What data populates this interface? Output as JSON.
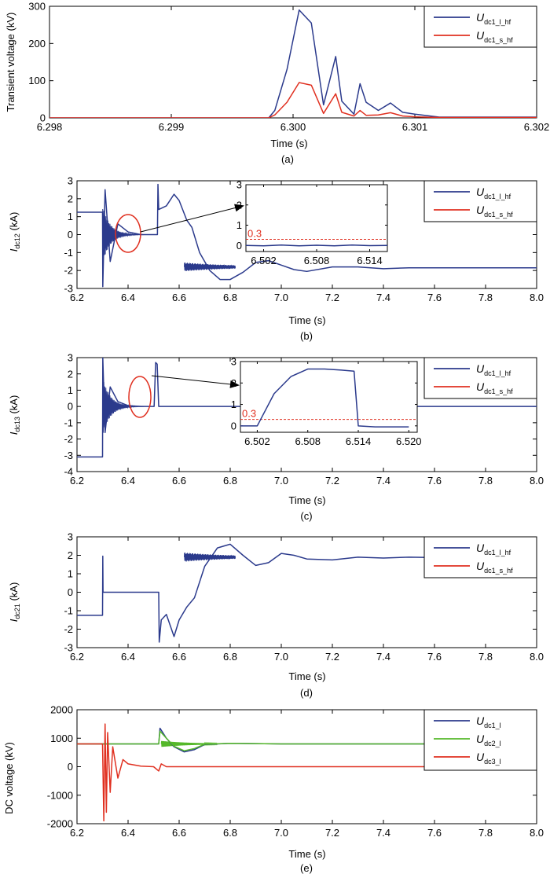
{
  "figure": {
    "width": 700,
    "height": 1112
  },
  "colors": {
    "blue": "#2b3a8c",
    "red": "#e03020",
    "green": "#55b82a",
    "inset_red": "#e03020"
  },
  "panels": [
    {
      "id": "a",
      "caption": "(a)",
      "ylabel": "Transient voltage (kV)",
      "xlabel": "Time (s)",
      "xlim": [
        6.298,
        6.302
      ],
      "ylim": [
        0,
        300
      ],
      "xticks": [
        6.298,
        6.299,
        6.3,
        6.301,
        6.302
      ],
      "xtick_labels": [
        "6.298",
        "6.299",
        "6.300",
        "6.301",
        "6.302"
      ],
      "yticks": [
        0,
        100,
        200,
        300
      ],
      "ytick_labels": [
        "0",
        "100",
        "200",
        "300"
      ],
      "legend": [
        {
          "main": "U",
          "sub": "dc1_l_hf",
          "color": "blue"
        },
        {
          "main": "U",
          "sub": "dc1_s_hf",
          "color": "red"
        }
      ]
    },
    {
      "id": "b",
      "caption": "(b)",
      "ylabel_main": "I",
      "ylabel_sub": "dc12",
      "ylabel_unit": " (kA)",
      "xlabel": "Time (s)",
      "xlim": [
        6.2,
        8.0
      ],
      "ylim": [
        -3,
        3
      ],
      "xticks": [
        6.2,
        6.4,
        6.6,
        6.8,
        7.0,
        7.2,
        7.4,
        7.6,
        7.8,
        8.0
      ],
      "xtick_labels": [
        "6.2",
        "6.4",
        "6.6",
        "6.8",
        "7.0",
        "7.2",
        "7.4",
        "7.6",
        "7.8",
        "8.0"
      ],
      "yticks": [
        -3,
        -2,
        -1,
        0,
        1,
        2,
        3
      ],
      "ytick_labels": [
        "-3",
        "-2",
        "-1",
        "0",
        "1",
        "2",
        "3"
      ],
      "legend": [
        {
          "main": "U",
          "sub": "dc1_l_hf",
          "color": "blue"
        },
        {
          "main": "U",
          "sub": "dc1_s_hf",
          "color": "red"
        }
      ],
      "inset": {
        "xlim": [
          6.5,
          6.516
        ],
        "ylim": [
          -0.3,
          3
        ],
        "xticks": [
          6.502,
          6.508,
          6.514
        ],
        "xtick_labels": [
          "6.502",
          "6.508",
          "6.514"
        ],
        "yticks": [
          0,
          1,
          2,
          3
        ],
        "ytick_labels": [
          "0",
          "1",
          "2",
          "3"
        ],
        "threshold": 0.3,
        "threshold_label": "0.3"
      }
    },
    {
      "id": "c",
      "caption": "(c)",
      "ylabel_main": "I",
      "ylabel_sub": "dc13",
      "ylabel_unit": " (kA)",
      "xlabel": "Time (s)",
      "xlim": [
        6.2,
        8.0
      ],
      "ylim": [
        -4,
        3
      ],
      "xticks": [
        6.2,
        6.4,
        6.6,
        6.8,
        7.0,
        7.2,
        7.4,
        7.6,
        7.8,
        8.0
      ],
      "xtick_labels": [
        "6.2",
        "6.4",
        "6.6",
        "6.8",
        "7.0",
        "7.2",
        "7.4",
        "7.6",
        "7.8",
        "8.0"
      ],
      "yticks": [
        -4,
        -3,
        -2,
        -1,
        0,
        1,
        2,
        3
      ],
      "ytick_labels": [
        "-4",
        "-3",
        "-2",
        "-1",
        "0",
        "1",
        "2",
        "3"
      ],
      "legend": [
        {
          "main": "U",
          "sub": "dc1_l_hf",
          "color": "blue"
        },
        {
          "main": "U",
          "sub": "dc1_s_hf",
          "color": "red"
        }
      ],
      "inset": {
        "xlim": [
          6.5,
          6.521
        ],
        "ylim": [
          -0.3,
          3
        ],
        "xticks": [
          6.502,
          6.508,
          6.514,
          6.52
        ],
        "xtick_labels": [
          "6.502",
          "6.508",
          "6.514",
          "6.520"
        ],
        "yticks": [
          0,
          1,
          2,
          3
        ],
        "ytick_labels": [
          "0",
          "1",
          "2",
          "3"
        ],
        "threshold": 0.3,
        "threshold_label": "0.3"
      }
    },
    {
      "id": "d",
      "caption": "(d)",
      "ylabel_main": "I",
      "ylabel_sub": "dc21",
      "ylabel_unit": " (kA)",
      "xlabel": "Time (s)",
      "xlim": [
        6.2,
        8.0
      ],
      "ylim": [
        -3,
        3
      ],
      "xticks": [
        6.2,
        6.4,
        6.6,
        6.8,
        7.0,
        7.2,
        7.4,
        7.6,
        7.8,
        8.0
      ],
      "xtick_labels": [
        "6.2",
        "6.4",
        "6.6",
        "6.8",
        "7.0",
        "7.2",
        "7.4",
        "7.6",
        "7.8",
        "8.0"
      ],
      "yticks": [
        -3,
        -2,
        -1,
        0,
        1,
        2,
        3
      ],
      "ytick_labels": [
        "-3",
        "-2",
        "-1",
        "0",
        "1",
        "2",
        "3"
      ],
      "legend": [
        {
          "main": "U",
          "sub": "dc1_l_hf",
          "color": "blue"
        },
        {
          "main": "U",
          "sub": "dc1_s_hf",
          "color": "red"
        }
      ]
    },
    {
      "id": "e",
      "caption": "(e)",
      "ylabel": "DC voltage (kV)",
      "xlabel": "Time (s)",
      "xlim": [
        6.2,
        8.0
      ],
      "ylim": [
        -2000,
        2000
      ],
      "xticks": [
        6.2,
        6.4,
        6.6,
        6.8,
        7.0,
        7.2,
        7.4,
        7.6,
        7.8,
        8.0
      ],
      "xtick_labels": [
        "6.2",
        "6.4",
        "6.6",
        "6.8",
        "7.0",
        "7.2",
        "7.4",
        "7.6",
        "7.8",
        "8.0"
      ],
      "yticks": [
        -2000,
        -1000,
        0,
        1000,
        2000
      ],
      "ytick_labels": [
        "-2000",
        "-1000",
        "0",
        "1000",
        "2000"
      ],
      "legend": [
        {
          "main": "U",
          "sub": "dc1_l",
          "color": "blue"
        },
        {
          "main": "U",
          "sub": "dc2_l",
          "color": "green"
        },
        {
          "main": "U",
          "sub": "dc3_l",
          "color": "red"
        }
      ]
    }
  ],
  "chart_data": [
    {
      "panel": "a",
      "type": "line",
      "title": "",
      "xlabel": "Time (s)",
      "ylabel": "Transient voltage (kV)",
      "xlim": [
        6.298,
        6.302
      ],
      "ylim": [
        0,
        300
      ],
      "series": [
        {
          "name": "U_dc1_l_hf",
          "color": "blue",
          "x": [
            6.298,
            6.2995,
            6.2998,
            6.29985,
            6.29995,
            6.30005,
            6.30015,
            6.30025,
            6.30035,
            6.3004,
            6.3005,
            6.30055,
            6.3006,
            6.3007,
            6.3008,
            6.3009,
            6.301,
            6.3012,
            6.302
          ],
          "y": [
            0,
            0,
            0,
            20,
            130,
            290,
            255,
            35,
            165,
            45,
            10,
            92,
            42,
            20,
            40,
            15,
            10,
            2,
            2
          ]
        },
        {
          "name": "U_dc1_s_hf",
          "color": "red",
          "x": [
            6.298,
            6.2995,
            6.2998,
            6.29985,
            6.29995,
            6.30005,
            6.30015,
            6.30025,
            6.30035,
            6.3004,
            6.3005,
            6.30055,
            6.3006,
            6.3007,
            6.3008,
            6.3009,
            6.301,
            6.3012,
            6.302
          ],
          "y": [
            0,
            0,
            0,
            8,
            42,
            95,
            88,
            12,
            65,
            15,
            5,
            20,
            7,
            8,
            14,
            5,
            3,
            1,
            1
          ]
        }
      ]
    },
    {
      "panel": "b",
      "type": "line",
      "xlabel": "Time (s)",
      "ylabel": "I_dc12 (kA)",
      "xlim": [
        6.2,
        8.0
      ],
      "ylim": [
        -3,
        3
      ],
      "series": [
        {
          "name": "U_dc1_l_hf",
          "color": "blue",
          "x": [
            6.2,
            6.3,
            6.301,
            6.31,
            6.33,
            6.36,
            6.4,
            6.45,
            6.5,
            6.515,
            6.517,
            6.52,
            6.55,
            6.58,
            6.6,
            6.63,
            6.65,
            6.68,
            6.72,
            6.76,
            6.8,
            6.85,
            6.9,
            6.95,
            7.0,
            7.05,
            7.1,
            7.2,
            7.3,
            7.4,
            7.5,
            7.6,
            7.8,
            8.0
          ],
          "y": [
            1.25,
            1.25,
            -2.9,
            2.5,
            -1.5,
            0.6,
            0.15,
            0.0,
            0.0,
            0.0,
            2.8,
            1.4,
            1.6,
            2.25,
            1.9,
            0.8,
            0.4,
            -1.0,
            -2.0,
            -2.5,
            -2.5,
            -2.1,
            -1.55,
            -1.45,
            -1.7,
            -1.95,
            -2.05,
            -1.8,
            -1.8,
            -1.9,
            -1.85,
            -1.85,
            -1.85,
            -1.85
          ]
        },
        {
          "name": "U_dc1_s_hf",
          "color": "red",
          "x": [],
          "y": []
        }
      ],
      "inset": {
        "x": [
          6.5,
          6.502,
          6.504,
          6.506,
          6.508,
          6.51,
          6.512,
          6.514,
          6.516
        ],
        "y": [
          0.0,
          -0.02,
          0.02,
          -0.02,
          0.01,
          -0.02,
          0.02,
          -0.01,
          0.0
        ],
        "threshold": 0.3
      }
    },
    {
      "panel": "c",
      "type": "line",
      "xlabel": "Time (s)",
      "ylabel": "I_dc13 (kA)",
      "xlim": [
        6.2,
        8.0
      ],
      "ylim": [
        -4,
        3
      ],
      "series": [
        {
          "name": "U_dc1_l_hf",
          "color": "blue",
          "x": [
            6.2,
            6.3,
            6.301,
            6.31,
            6.33,
            6.36,
            6.4,
            6.45,
            6.5,
            6.502,
            6.508,
            6.514,
            6.52,
            6.55,
            6.7,
            7.0,
            7.5,
            8.0
          ],
          "y": [
            -3.1,
            -3.1,
            3.0,
            -1.6,
            1.2,
            0.3,
            0.05,
            0.0,
            0.0,
            0.0,
            2.7,
            2.6,
            0.0,
            0.0,
            0.0,
            0.0,
            0.0,
            0.0
          ]
        },
        {
          "name": "U_dc1_s_hf",
          "color": "red",
          "x": [],
          "y": []
        }
      ],
      "inset": {
        "x": [
          6.5,
          6.5015,
          6.502,
          6.504,
          6.506,
          6.508,
          6.51,
          6.512,
          6.5135,
          6.514,
          6.516,
          6.518,
          6.52
        ],
        "y": [
          0.0,
          0.0,
          0.0,
          1.5,
          2.3,
          2.65,
          2.65,
          2.6,
          2.55,
          0.0,
          -0.05,
          -0.05,
          -0.05
        ],
        "threshold": 0.3
      }
    },
    {
      "panel": "d",
      "type": "line",
      "xlabel": "Time (s)",
      "ylabel": "I_dc21 (kA)",
      "xlim": [
        6.2,
        8.0
      ],
      "ylim": [
        -3,
        3
      ],
      "series": [
        {
          "name": "U_dc1_l_hf",
          "color": "blue",
          "x": [
            6.2,
            6.3,
            6.301,
            6.302,
            6.31,
            6.52,
            6.522,
            6.53,
            6.55,
            6.58,
            6.6,
            6.63,
            6.66,
            6.7,
            6.75,
            6.8,
            6.85,
            6.9,
            6.95,
            7.0,
            7.05,
            7.1,
            7.2,
            7.3,
            7.4,
            7.5,
            7.6,
            7.8,
            8.0
          ],
          "y": [
            -1.25,
            -1.25,
            1.95,
            0.0,
            0.0,
            0.0,
            -2.7,
            -1.5,
            -1.2,
            -2.4,
            -1.5,
            -0.8,
            -0.3,
            1.4,
            2.4,
            2.6,
            2.0,
            1.45,
            1.6,
            2.1,
            2.0,
            1.8,
            1.75,
            1.9,
            1.85,
            1.9,
            1.88,
            1.88,
            1.88
          ]
        },
        {
          "name": "U_dc1_s_hf",
          "color": "red",
          "x": [],
          "y": []
        }
      ]
    },
    {
      "panel": "e",
      "type": "line",
      "xlabel": "Time (s)",
      "ylabel": "DC voltage (kV)",
      "xlim": [
        6.2,
        8.0
      ],
      "ylim": [
        -2000,
        2000
      ],
      "series": [
        {
          "name": "U_dc1_l",
          "color": "blue",
          "x": [
            6.2,
            6.52,
            6.525,
            6.55,
            6.58,
            6.62,
            6.66,
            6.7,
            6.8,
            7.0,
            7.5,
            8.0
          ],
          "y": [
            800,
            800,
            1350,
            1000,
            700,
            520,
            600,
            780,
            820,
            800,
            800,
            800
          ]
        },
        {
          "name": "U_dc2_l",
          "color": "green",
          "x": [
            6.2,
            6.52,
            6.525,
            6.55,
            6.58,
            6.62,
            6.66,
            6.7,
            6.8,
            7.0,
            7.5,
            8.0
          ],
          "y": [
            800,
            800,
            1250,
            1000,
            720,
            560,
            640,
            790,
            820,
            800,
            800,
            800
          ]
        },
        {
          "name": "U_dc3_l",
          "color": "red",
          "x": [
            6.2,
            6.3,
            6.305,
            6.31,
            6.315,
            6.32,
            6.33,
            6.34,
            6.36,
            6.38,
            6.4,
            6.45,
            6.5,
            6.52,
            6.53,
            6.55,
            6.6,
            7.0,
            8.0
          ],
          "y": [
            800,
            800,
            -1900,
            1500,
            -1600,
            1200,
            -900,
            700,
            -400,
            250,
            100,
            20,
            0,
            -150,
            100,
            0,
            0,
            0,
            0
          ]
        }
      ]
    }
  ]
}
